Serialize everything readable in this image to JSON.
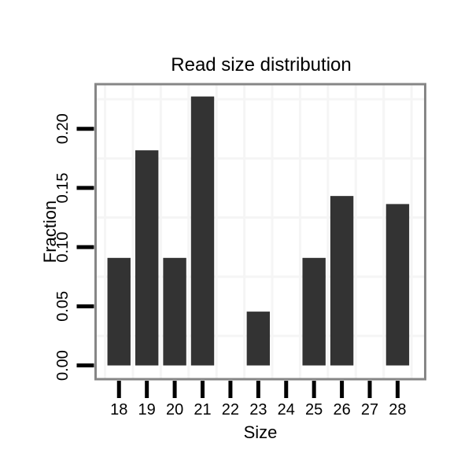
{
  "chart_data": {
    "type": "bar",
    "title": "Read size distribution",
    "xlabel": "Size",
    "ylabel": "Fraction",
    "categories": [
      18,
      19,
      20,
      21,
      22,
      23,
      24,
      25,
      26,
      27,
      28
    ],
    "values": [
      0.0909,
      0.1818,
      0.0909,
      0.2273,
      0,
      0.0455,
      0,
      0.0909,
      0.1432,
      0,
      0.1364
    ],
    "x_ticks": [
      18,
      19,
      20,
      21,
      22,
      23,
      24,
      25,
      26,
      27,
      28
    ],
    "y_ticks": [
      {
        "value": 0.0,
        "label": "0.00"
      },
      {
        "value": 0.05,
        "label": "0.05"
      },
      {
        "value": 0.1,
        "label": "0.10"
      },
      {
        "value": 0.15,
        "label": "0.15"
      },
      {
        "value": 0.2,
        "label": "0.20"
      }
    ],
    "xlim": [
      17.16,
      28.99
    ],
    "ylim": [
      -0.0116,
      0.2377
    ],
    "bar_width": 0.83,
    "grid": {
      "mode": "minor-only",
      "minor_x": [
        17.5,
        18.5,
        19.5,
        20.5,
        21.5,
        22.5,
        23.5,
        24.5,
        25.5,
        26.5,
        27.5,
        28.5
      ],
      "minor_y": [
        0.025,
        0.075,
        0.125,
        0.175,
        0.225
      ]
    },
    "legend": "none",
    "colors": {
      "bar": "#333333",
      "panel_border": "#868686",
      "grid": "#f5f5f5",
      "tick": "#000000",
      "text": "#000000",
      "panel_background": "#ffffff"
    }
  }
}
